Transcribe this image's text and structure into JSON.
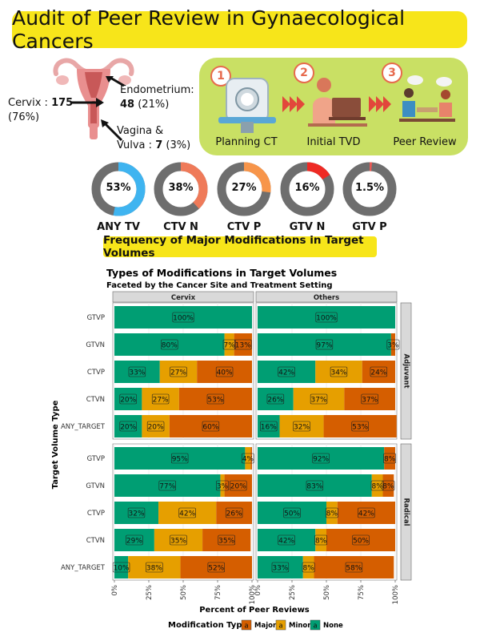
{
  "header": {
    "title": "Audit of Peer Review in Gynaecological Cancers"
  },
  "anatomy": {
    "cervix": {
      "name": "Cervix :",
      "count": "175",
      "pct": "(76%)"
    },
    "endometrium": {
      "name": "Endometrium:",
      "count": "48",
      "pct": "(21%)"
    },
    "vagina": {
      "name1": "Vagina &",
      "name2": "Vulva :",
      "count": "7",
      "pct": "(3%)"
    }
  },
  "workflow": {
    "steps": [
      {
        "num": "1",
        "label": "Planning CT"
      },
      {
        "num": "2",
        "label": "Initial TVD"
      },
      {
        "num": "3",
        "label": "Peer Review"
      }
    ]
  },
  "donuts": [
    {
      "name": "ANY TV",
      "label": "53%",
      "value": 53,
      "color": "#3fb4f0"
    },
    {
      "name": "CTV N",
      "label": "38%",
      "value": 38,
      "color": "#ef7a59"
    },
    {
      "name": "CTV P",
      "label": "27%",
      "value": 27,
      "color": "#f7954a"
    },
    {
      "name": "GTV N",
      "label": "16%",
      "value": 16,
      "color": "#ee2a24"
    },
    {
      "name": "GTV P",
      "label": "1.5%",
      "value": 1.5,
      "color": "#e85a55"
    }
  ],
  "frequency_banner": "Frequency of Major Modifications in Target Volumes",
  "colors": {
    "major": "#d55e00",
    "minor": "#e69f00",
    "none": "#009e73",
    "donut_track": "#6e6e6e",
    "banner": "#f7e51a",
    "workflow_bg": "#c9e064"
  },
  "chart_data": {
    "type": "bar",
    "orientation": "horizontal-stacked",
    "title": "Types of Modifications in Target Volumes",
    "subtitle": "Faceted by the Cancer Site and Treatment Setting",
    "xlabel": "Percent of Peer Reviews",
    "ylabel": "Target Volume Type",
    "xlim": [
      0,
      100
    ],
    "xticks": [
      "0%",
      "25%",
      "50%",
      "75%",
      "100%"
    ],
    "columns": [
      "Cervix",
      "Others"
    ],
    "rows": [
      "Adjuvant",
      "Radical"
    ],
    "categories": [
      "GTVP",
      "GTVN",
      "CTVP",
      "CTVN",
      "ANY_TARGET"
    ],
    "legend": {
      "title": "Modification Type",
      "position": "bottom",
      "items": [
        "Major",
        "Minor",
        "None"
      ]
    },
    "panels": [
      {
        "column": "Cervix",
        "row": "Adjuvant",
        "bars": [
          {
            "category": "GTVP",
            "none": 100,
            "minor": 0,
            "major": 0,
            "labels": [
              "100%",
              "",
              ""
            ]
          },
          {
            "category": "GTVN",
            "none": 80,
            "minor": 7,
            "major": 13,
            "labels": [
              "80%",
              "7%",
              "13%"
            ]
          },
          {
            "category": "CTVP",
            "none": 33,
            "minor": 27,
            "major": 40,
            "labels": [
              "33%",
              "27%",
              "40%"
            ]
          },
          {
            "category": "CTVN",
            "none": 20,
            "minor": 27,
            "major": 53,
            "labels": [
              "20%",
              "27%",
              "53%"
            ]
          },
          {
            "category": "ANY_TARGET",
            "none": 20,
            "minor": 20,
            "major": 60,
            "labels": [
              "20%",
              "20%",
              "60%"
            ]
          }
        ]
      },
      {
        "column": "Others",
        "row": "Adjuvant",
        "bars": [
          {
            "category": "GTVP",
            "none": 100,
            "minor": 0,
            "major": 0,
            "labels": [
              "100%",
              "",
              ""
            ]
          },
          {
            "category": "GTVN",
            "none": 97,
            "minor": 0,
            "major": 3,
            "labels": [
              "97%",
              "",
              "3%"
            ]
          },
          {
            "category": "CTVP",
            "none": 42,
            "minor": 34,
            "major": 24,
            "labels": [
              "42%",
              "34%",
              "24%"
            ]
          },
          {
            "category": "CTVN",
            "none": 26,
            "minor": 37,
            "major": 37,
            "labels": [
              "26%",
              "37%",
              "37%"
            ]
          },
          {
            "category": "ANY_TARGET",
            "none": 16,
            "minor": 32,
            "major": 53,
            "labels": [
              "16%",
              "32%",
              "53%"
            ]
          }
        ]
      },
      {
        "column": "Cervix",
        "row": "Radical",
        "bars": [
          {
            "category": "GTVP",
            "none": 95,
            "minor": 4,
            "major": 1,
            "labels": [
              "95%",
              "4%",
              ""
            ]
          },
          {
            "category": "GTVN",
            "none": 77,
            "minor": 3,
            "major": 20,
            "labels": [
              "77%",
              "3%",
              "20%"
            ]
          },
          {
            "category": "CTVP",
            "none": 32,
            "minor": 42,
            "major": 26,
            "labels": [
              "32%",
              "42%",
              "26%"
            ]
          },
          {
            "category": "CTVN",
            "none": 29,
            "minor": 35,
            "major": 35,
            "labels": [
              "29%",
              "35%",
              "35%"
            ]
          },
          {
            "category": "ANY_TARGET",
            "none": 10,
            "minor": 38,
            "major": 52,
            "labels": [
              "10%",
              "38%",
              "52%"
            ]
          }
        ]
      },
      {
        "column": "Others",
        "row": "Radical",
        "bars": [
          {
            "category": "GTVP",
            "none": 92,
            "minor": 0,
            "major": 8,
            "labels": [
              "92%",
              "",
              "8%"
            ]
          },
          {
            "category": "GTVN",
            "none": 83,
            "minor": 8,
            "major": 8,
            "labels": [
              "83%",
              "8%",
              "8%"
            ]
          },
          {
            "category": "CTVP",
            "none": 50,
            "minor": 8,
            "major": 42,
            "labels": [
              "50%",
              "8%",
              "42%"
            ]
          },
          {
            "category": "CTVN",
            "none": 42,
            "minor": 8,
            "major": 50,
            "labels": [
              "42%",
              "8%",
              "50%"
            ]
          },
          {
            "category": "ANY_TARGET",
            "none": 33,
            "minor": 8,
            "major": 58,
            "labels": [
              "33%",
              "8%",
              "58%"
            ]
          }
        ]
      }
    ]
  }
}
